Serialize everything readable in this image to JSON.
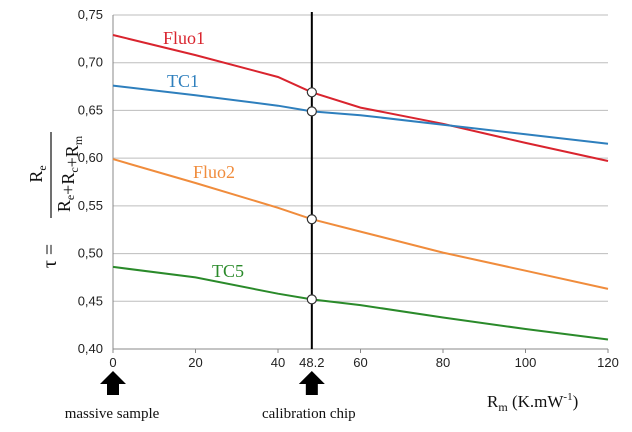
{
  "chart_data": {
    "type": "line",
    "xlim": [
      0,
      120
    ],
    "ylim": [
      0.4,
      0.75
    ],
    "x_ticks": [
      "0",
      "20",
      "40",
      "60",
      "80",
      "100",
      "120"
    ],
    "y_ticks": [
      "0,40",
      "0,45",
      "0,50",
      "0,55",
      "0,60",
      "0,65",
      "0,70",
      "0,75"
    ],
    "grid": "horizontal",
    "xlabel": {
      "main": "R",
      "sub": "m",
      "unit": " (K.mW",
      "sup": "-1",
      "close": ")"
    },
    "ylabel": {
      "tau": "τ =",
      "numerator": {
        "main": "R",
        "sub": "e"
      },
      "denominator": [
        {
          "main": "R",
          "sub": "e"
        },
        {
          "main": "+R",
          "sub": "c"
        },
        {
          "main": "+R",
          "sub": "m"
        }
      ]
    },
    "vertical_line": {
      "x": 48.2,
      "label": "48.2"
    },
    "markers": [
      {
        "label": "massive sample",
        "x": 0
      },
      {
        "label": "calibration chip",
        "x": 48.2
      }
    ],
    "series": [
      {
        "name": "Fluo1",
        "color": "#d9242e",
        "x": [
          0,
          20,
          40,
          48.2,
          60,
          80,
          100,
          120
        ],
        "y": [
          0.729,
          0.708,
          0.685,
          0.669,
          0.653,
          0.636,
          0.616,
          0.597
        ]
      },
      {
        "name": "TC1",
        "color": "#2e7fbd",
        "x": [
          0,
          20,
          40,
          48.2,
          60,
          80,
          100,
          120
        ],
        "y": [
          0.676,
          0.666,
          0.655,
          0.649,
          0.645,
          0.635,
          0.625,
          0.615
        ]
      },
      {
        "name": "Fluo2",
        "color": "#f08c3c",
        "x": [
          0,
          20,
          40,
          48.2,
          60,
          80,
          100,
          120
        ],
        "y": [
          0.599,
          0.574,
          0.548,
          0.536,
          0.523,
          0.501,
          0.482,
          0.463
        ]
      },
      {
        "name": "TC5",
        "color": "#2a8a2a",
        "x": [
          0,
          20,
          40,
          48.2,
          60,
          80,
          100,
          120
        ],
        "y": [
          0.486,
          0.475,
          0.458,
          0.452,
          0.446,
          0.433,
          0.421,
          0.41
        ]
      }
    ],
    "intersections": [
      0.669,
      0.649,
      0.536,
      0.452
    ]
  }
}
